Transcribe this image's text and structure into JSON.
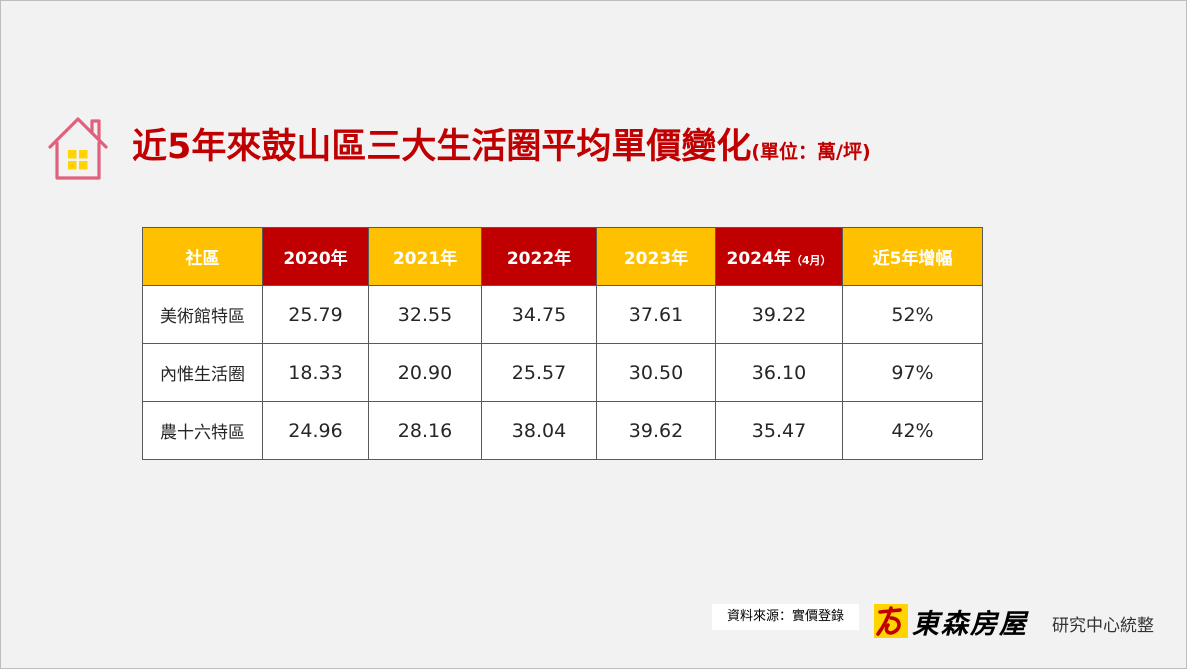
{
  "title": {
    "main": "近5年來鼓山區三大生活圈平均單價變化",
    "unit": "(單位：萬/坪)"
  },
  "table": {
    "headers": [
      {
        "label": "社區",
        "note": "",
        "color": "#ffc000"
      },
      {
        "label": "2020年",
        "note": "",
        "color": "#c00000"
      },
      {
        "label": "2021年",
        "note": "",
        "color": "#ffc000"
      },
      {
        "label": "2022年",
        "note": "",
        "color": "#c00000"
      },
      {
        "label": "2023年",
        "note": "",
        "color": "#ffc000"
      },
      {
        "label": "2024年",
        "note": "（4月）",
        "color": "#c00000"
      },
      {
        "label": "近5年增幅",
        "note": "",
        "color": "#ffc000"
      }
    ],
    "rows": [
      [
        "美術館特區",
        "25.79",
        "32.55",
        "34.75",
        "37.61",
        "39.22",
        "52%"
      ],
      [
        "內惟生活圈",
        "18.33",
        "20.90",
        "25.57",
        "30.50",
        "36.10",
        "97%"
      ],
      [
        "農十六特區",
        "24.96",
        "28.16",
        "38.04",
        "39.62",
        "35.47",
        "42%"
      ]
    ]
  },
  "footer": {
    "source": "資料來源：實價登錄",
    "brand": "東森房屋",
    "brand_sub": "研究中心統整"
  },
  "colors": {
    "accent_red": "#c00000",
    "accent_gold": "#ffc000",
    "house_outline": "#e0607e",
    "window_yellow": "#ffd400"
  }
}
